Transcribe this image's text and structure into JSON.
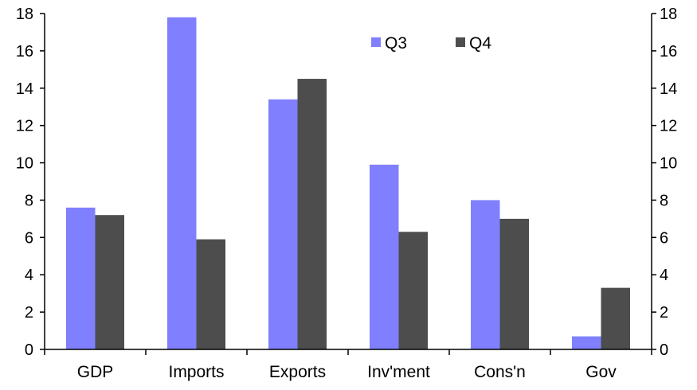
{
  "chart_data": {
    "type": "bar",
    "categories": [
      "GDP",
      "Imports",
      "Exports",
      "Inv'ment",
      "Cons'n",
      "Gov"
    ],
    "series": [
      {
        "name": "Q3",
        "color": "#8080ff",
        "values": [
          7.6,
          17.8,
          13.4,
          9.9,
          8.0,
          0.7
        ]
      },
      {
        "name": "Q4",
        "color": "#4d4d4d",
        "values": [
          7.2,
          5.9,
          14.5,
          6.3,
          7.0,
          3.3
        ]
      }
    ],
    "ylim": [
      0,
      18
    ],
    "yticks": [
      0,
      2,
      4,
      6,
      8,
      10,
      12,
      14,
      16,
      18
    ],
    "secondary_ylim": [
      0,
      18
    ],
    "legend_position": "top-center",
    "grid": false
  }
}
